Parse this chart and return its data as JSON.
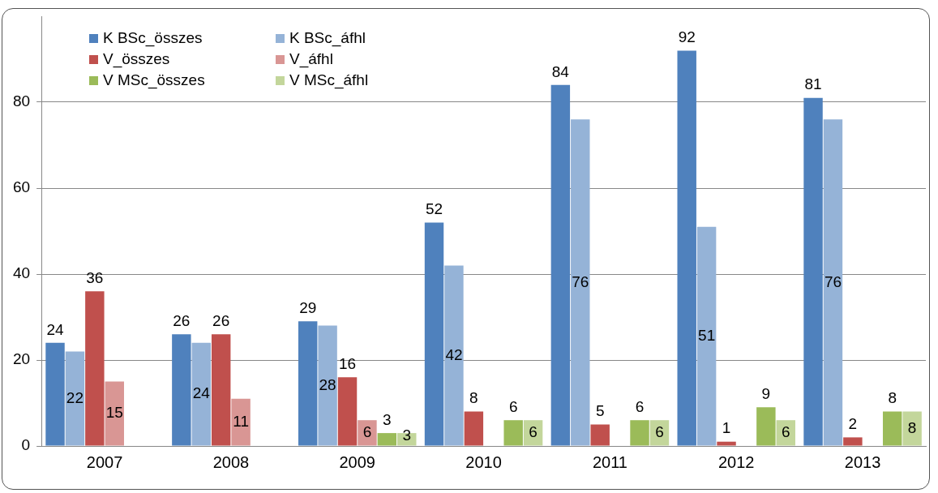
{
  "chart_data": {
    "type": "bar",
    "categories": [
      "2007",
      "2008",
      "2009",
      "2010",
      "2011",
      "2012",
      "2013"
    ],
    "series": [
      {
        "name": "K BSc_összes",
        "color": "#4f81bd",
        "values": [
          24,
          26,
          29,
          52,
          84,
          92,
          81
        ]
      },
      {
        "name": "K BSc_áfhl",
        "color": "#95b3d7",
        "values": [
          22,
          24,
          28,
          42,
          76,
          51,
          76
        ]
      },
      {
        "name": "V_összes",
        "color": "#c0504d",
        "values": [
          36,
          26,
          16,
          8,
          5,
          1,
          2
        ]
      },
      {
        "name": "V_áfhl",
        "color": "#d99694",
        "values": [
          15,
          11,
          6,
          null,
          null,
          null,
          null
        ]
      },
      {
        "name": "V MSc_összes",
        "color": "#9bbb59",
        "values": [
          null,
          null,
          3,
          6,
          6,
          9,
          8
        ]
      },
      {
        "name": "V MSc_áfhl",
        "color": "#c3d69b",
        "values": [
          null,
          null,
          3,
          6,
          6,
          6,
          8
        ]
      }
    ],
    "ylim": [
      0,
      100
    ],
    "yticks": [
      0,
      20,
      40,
      60,
      80
    ],
    "grid": "y",
    "legend": "top left",
    "data_labels": true
  }
}
